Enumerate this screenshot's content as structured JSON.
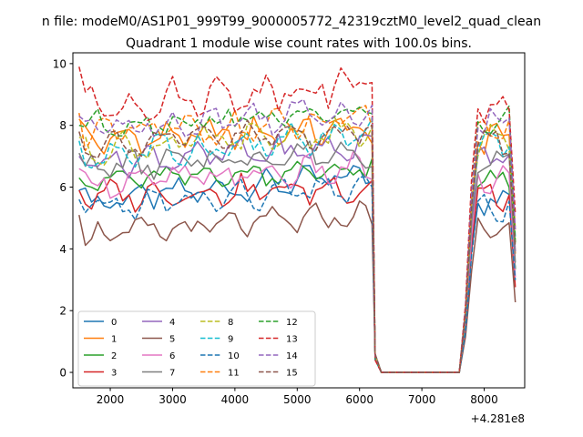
{
  "suptitle": "n file: modeM0/AS1P01_999T99_9000005772_42319cztM0_level2_quad_clean",
  "chart_data": {
    "type": "line",
    "title": "Quadrant 1 module wise count rates with 100.0s bins.",
    "xlabel": "",
    "ylabel": "",
    "x_offset_label": "+4.281e8",
    "xlim": [
      1400,
      8650
    ],
    "ylim": [
      -0.5,
      10.35
    ],
    "x_ticks": [
      2000,
      3000,
      4000,
      5000,
      6000,
      7000,
      8000
    ],
    "x_tick_labels": [
      "2000",
      "3000",
      "4000",
      "5000",
      "6000",
      "7000",
      "8000"
    ],
    "y_ticks": [
      0,
      2,
      4,
      6,
      8,
      10
    ],
    "y_tick_labels": [
      "0",
      "2",
      "4",
      "6",
      "8",
      "10"
    ],
    "grid": false,
    "legend": {
      "position": "lower-left",
      "columns": 4
    },
    "x_segments": [
      {
        "start": 1500,
        "end": 6150,
        "step": 100
      },
      {
        "start": 7600,
        "end": 8500,
        "step": 100
      }
    ],
    "series": [
      {
        "name": "0",
        "color": "#1f77b4",
        "dashed": false,
        "base": 5.5,
        "amp": 0.25,
        "early": 5.9,
        "trend": 0.9,
        "noise": 0.3,
        "post": 5.5
      },
      {
        "name": "1",
        "color": "#ff7f0e",
        "dashed": false,
        "base": 7.5,
        "amp": 0.3,
        "early": 8.2,
        "trend": 0.4,
        "noise": 0.35,
        "post": 7.6
      },
      {
        "name": "2",
        "color": "#2ca02c",
        "dashed": false,
        "base": 6.2,
        "amp": 0.25,
        "early": 6.3,
        "trend": 0.4,
        "noise": 0.25,
        "post": 6.3
      },
      {
        "name": "3",
        "color": "#d62728",
        "dashed": false,
        "base": 5.7,
        "amp": 0.3,
        "early": 5.9,
        "trend": 0.3,
        "noise": 0.3,
        "post": 5.7
      },
      {
        "name": "4",
        "color": "#9467bd",
        "dashed": false,
        "base": 6.8,
        "amp": 0.3,
        "early": 7.0,
        "trend": 0.5,
        "noise": 0.3,
        "post": 7.0
      },
      {
        "name": "5",
        "color": "#8c564b",
        "dashed": false,
        "base": 4.4,
        "amp": 0.25,
        "early": 5.1,
        "trend": 0.7,
        "noise": 0.3,
        "post": 4.6
      },
      {
        "name": "6",
        "color": "#e377c2",
        "dashed": false,
        "base": 6.1,
        "amp": 0.3,
        "early": 6.6,
        "trend": 0.5,
        "noise": 0.3,
        "post": 6.2
      },
      {
        "name": "7",
        "color": "#7f7f7f",
        "dashed": false,
        "base": 6.6,
        "amp": 0.3,
        "early": 7.1,
        "trend": 0.6,
        "noise": 0.3,
        "post": 6.8
      },
      {
        "name": "8",
        "color": "#bcbd22",
        "dashed": true,
        "base": 7.2,
        "amp": 0.3,
        "early": 7.6,
        "trend": 0.6,
        "noise": 0.3,
        "post": 7.6
      },
      {
        "name": "9",
        "color": "#17becf",
        "dashed": true,
        "base": 7.0,
        "amp": 0.35,
        "early": 7.5,
        "trend": 0.6,
        "noise": 0.35,
        "post": 7.4
      },
      {
        "name": "10",
        "color": "#1f77b4",
        "dashed": true,
        "base": 5.3,
        "amp": 0.3,
        "early": 5.6,
        "trend": 0.7,
        "noise": 0.3,
        "post": 5.3
      },
      {
        "name": "11",
        "color": "#ff7f0e",
        "dashed": true,
        "base": 7.7,
        "amp": 0.3,
        "early": 8.4,
        "trend": 0.4,
        "noise": 0.35,
        "post": 7.8
      },
      {
        "name": "12",
        "color": "#2ca02c",
        "dashed": true,
        "base": 8.0,
        "amp": 0.25,
        "early": 8.0,
        "trend": 0.4,
        "noise": 0.3,
        "post": 8.2
      },
      {
        "name": "13",
        "color": "#d62728",
        "dashed": true,
        "base": 8.6,
        "amp": 0.35,
        "early": 9.9,
        "trend": 0.8,
        "noise": 0.4,
        "post": 8.8
      },
      {
        "name": "14",
        "color": "#9467bd",
        "dashed": true,
        "base": 7.9,
        "amp": 0.3,
        "early": 8.3,
        "trend": 0.6,
        "noise": 0.35,
        "post": 8.1
      },
      {
        "name": "15",
        "color": "#8c564b",
        "dashed": true,
        "base": 7.4,
        "amp": 0.3,
        "early": 7.8,
        "trend": 0.4,
        "noise": 0.3,
        "post": 7.5
      }
    ]
  }
}
